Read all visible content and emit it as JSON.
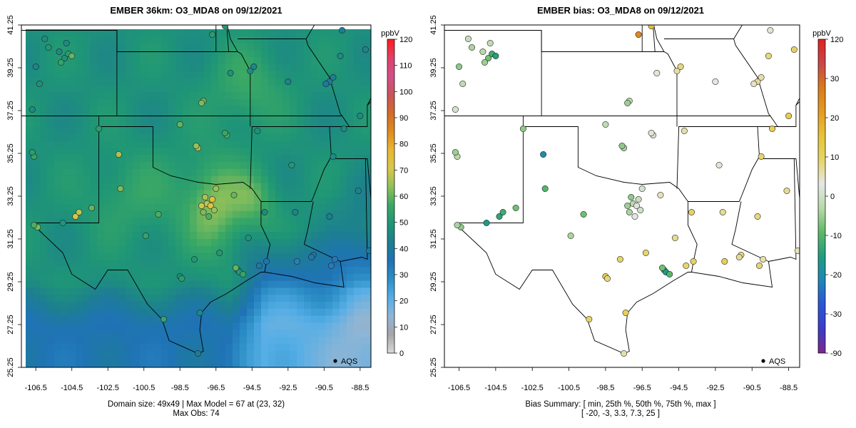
{
  "left_panel": {
    "title": "EMBER 36km: O3_MDA8 on 09/12/2021",
    "x_ticks": [
      "-106.5",
      "-104.5",
      "-102.5",
      "-100.5",
      "-98.5",
      "-96.5",
      "-94.5",
      "-92.5",
      "-90.5",
      "-88.5"
    ],
    "y_ticks": [
      "25.25",
      "27.25",
      "29.25",
      "31.25",
      "33.25",
      "35.25",
      "37.25",
      "39.25",
      "41.25"
    ],
    "legend_label": "AQS",
    "caption_line1": "Domain size: 49x49 | Max Model = 67 at (23, 32)",
    "caption_line2": "Max Obs: 74",
    "colorbar": {
      "unit": "ppbV",
      "ticks": [
        "0",
        "10",
        "20",
        "30",
        "40",
        "50",
        "60",
        "70",
        "80",
        "90",
        "100",
        "110",
        "120"
      ],
      "range": [
        0,
        120
      ],
      "stops": [
        "#d9d9d9",
        "#a6a6a6",
        "#8fb5d5",
        "#55aee6",
        "#2d8fc7",
        "#1f73b5",
        "#1d7f90",
        "#1f9676",
        "#3aa865",
        "#8fc05a",
        "#d7c84a",
        "#e9b632",
        "#e08a20",
        "#d46a2a",
        "#c8545c",
        "#d34f8a",
        "#e0406a",
        "#ff1a1a"
      ]
    },
    "stations": [
      {
        "lon": -104.9,
        "lat": 39.7,
        "v": 48
      },
      {
        "lon": -104.7,
        "lat": 39.9,
        "v": 52
      },
      {
        "lon": -105.1,
        "lat": 39.5,
        "v": 55
      },
      {
        "lon": -104.5,
        "lat": 39.8,
        "v": 60
      },
      {
        "lon": -105.2,
        "lat": 40.0,
        "v": 45
      },
      {
        "lon": -104.8,
        "lat": 40.4,
        "v": 46
      },
      {
        "lon": -106.0,
        "lat": 40.6,
        "v": 47
      },
      {
        "lon": -106.5,
        "lat": 39.3,
        "v": 44
      },
      {
        "lon": -105.8,
        "lat": 40.2,
        "v": 50
      },
      {
        "lon": -106.3,
        "lat": 38.5,
        "v": 48
      },
      {
        "lon": -106.7,
        "lat": 37.3,
        "v": 46
      },
      {
        "lon": -106.6,
        "lat": 35.1,
        "v": 55
      },
      {
        "lon": -106.7,
        "lat": 35.3,
        "v": 52
      },
      {
        "lon": -106.4,
        "lat": 31.8,
        "v": 62
      },
      {
        "lon": -106.6,
        "lat": 31.9,
        "v": 58
      },
      {
        "lon": -104.3,
        "lat": 32.3,
        "v": 72
      },
      {
        "lon": -104.1,
        "lat": 32.5,
        "v": 68
      },
      {
        "lon": -103.4,
        "lat": 32.7,
        "v": 60
      },
      {
        "lon": -105.0,
        "lat": 32.0,
        "v": 50
      },
      {
        "lon": -101.9,
        "lat": 35.2,
        "v": 66
      },
      {
        "lon": -99.4,
        "lat": 27.5,
        "v": 55
      },
      {
        "lon": -98.5,
        "lat": 29.5,
        "v": 48
      },
      {
        "lon": -98.4,
        "lat": 29.4,
        "v": 52
      },
      {
        "lon": -97.7,
        "lat": 30.3,
        "v": 50
      },
      {
        "lon": -97.4,
        "lat": 27.8,
        "v": 45
      },
      {
        "lon": -97.5,
        "lat": 25.9,
        "v": 42
      },
      {
        "lon": -97.3,
        "lat": 32.8,
        "v": 70
      },
      {
        "lon": -97.0,
        "lat": 32.9,
        "v": 68
      },
      {
        "lon": -96.8,
        "lat": 32.8,
        "v": 72
      },
      {
        "lon": -96.7,
        "lat": 33.1,
        "v": 74
      },
      {
        "lon": -97.1,
        "lat": 33.2,
        "v": 66
      },
      {
        "lon": -96.6,
        "lat": 32.6,
        "v": 64
      },
      {
        "lon": -97.2,
        "lat": 32.5,
        "v": 62
      },
      {
        "lon": -96.9,
        "lat": 32.3,
        "v": 58
      },
      {
        "lon": -95.3,
        "lat": 29.8,
        "v": 45
      },
      {
        "lon": -95.2,
        "lat": 29.7,
        "v": 50
      },
      {
        "lon": -95.4,
        "lat": 29.9,
        "v": 60
      },
      {
        "lon": -95.0,
        "lat": 29.6,
        "v": 55
      },
      {
        "lon": -94.1,
        "lat": 30.0,
        "v": 38
      },
      {
        "lon": -93.7,
        "lat": 30.2,
        "v": 36
      },
      {
        "lon": -91.1,
        "lat": 30.5,
        "v": 35
      },
      {
        "lon": -91.2,
        "lat": 30.4,
        "v": 38
      },
      {
        "lon": -90.1,
        "lat": 30.0,
        "v": 33
      },
      {
        "lon": -89.9,
        "lat": 30.3,
        "v": 34
      },
      {
        "lon": -88.0,
        "lat": 30.7,
        "v": 40
      },
      {
        "lon": -92.0,
        "lat": 30.2,
        "v": 32
      },
      {
        "lon": -93.8,
        "lat": 32.5,
        "v": 46
      },
      {
        "lon": -92.1,
        "lat": 32.5,
        "v": 44
      },
      {
        "lon": -97.5,
        "lat": 35.5,
        "v": 66
      },
      {
        "lon": -97.6,
        "lat": 35.6,
        "v": 64
      },
      {
        "lon": -95.9,
        "lat": 36.1,
        "v": 58
      },
      {
        "lon": -96.0,
        "lat": 36.2,
        "v": 56
      },
      {
        "lon": -97.2,
        "lat": 37.7,
        "v": 60
      },
      {
        "lon": -97.3,
        "lat": 37.6,
        "v": 62
      },
      {
        "lon": -94.6,
        "lat": 39.1,
        "v": 46
      },
      {
        "lon": -94.4,
        "lat": 39.3,
        "v": 44
      },
      {
        "lon": -95.7,
        "lat": 39.0,
        "v": 48
      },
      {
        "lon": -96.0,
        "lat": 41.2,
        "v": 50
      },
      {
        "lon": -96.7,
        "lat": 40.8,
        "v": 52
      },
      {
        "lon": -93.6,
        "lat": 41.6,
        "v": 48
      },
      {
        "lon": -90.2,
        "lat": 38.6,
        "v": 40
      },
      {
        "lon": -90.0,
        "lat": 38.8,
        "v": 42
      },
      {
        "lon": -90.4,
        "lat": 38.5,
        "v": 38
      },
      {
        "lon": -89.6,
        "lat": 39.8,
        "v": 45
      },
      {
        "lon": -88.2,
        "lat": 40.1,
        "v": 44
      },
      {
        "lon": -92.3,
        "lat": 34.7,
        "v": 50
      },
      {
        "lon": -94.2,
        "lat": 36.3,
        "v": 48
      },
      {
        "lon": -90.0,
        "lat": 35.1,
        "v": 46
      },
      {
        "lon": -89.4,
        "lat": 36.4,
        "v": 45
      },
      {
        "lon": -88.6,
        "lat": 33.5,
        "v": 44
      },
      {
        "lon": -90.2,
        "lat": 32.3,
        "v": 42
      },
      {
        "lon": -88.5,
        "lat": 37.0,
        "v": 46
      },
      {
        "lon": -92.5,
        "lat": 38.6,
        "v": 44
      },
      {
        "lon": -91.6,
        "lat": 41.7,
        "v": 40
      },
      {
        "lon": -89.5,
        "lat": 41.0,
        "v": 42
      },
      {
        "lon": -98.5,
        "lat": 36.6,
        "v": 60
      },
      {
        "lon": -99.7,
        "lat": 32.4,
        "v": 58
      },
      {
        "lon": -101.8,
        "lat": 33.6,
        "v": 62
      },
      {
        "lon": -100.4,
        "lat": 31.4,
        "v": 55
      },
      {
        "lon": -103.0,
        "lat": 36.4,
        "v": 52
      },
      {
        "lon": -96.5,
        "lat": 33.6,
        "v": 64
      },
      {
        "lon": -95.5,
        "lat": 33.3,
        "v": 60
      },
      {
        "lon": -94.7,
        "lat": 31.3,
        "v": 48
      },
      {
        "lon": -96.3,
        "lat": 30.6,
        "v": 50
      }
    ]
  },
  "right_panel": {
    "title": "EMBER bias: O3_MDA8 on 09/12/2021",
    "x_ticks": [
      "-106.5",
      "-104.5",
      "-102.5",
      "-100.5",
      "-98.5",
      "-96.5",
      "-94.5",
      "-92.5",
      "-90.5",
      "-88.5"
    ],
    "y_ticks": [
      "25.25",
      "27.25",
      "29.25",
      "31.25",
      "33.25",
      "35.25",
      "37.25",
      "39.25",
      "41.25"
    ],
    "legend_label": "AQS",
    "caption_line1": "Bias Summary: [ min, 25th %, 50th %, 75th %, max ]",
    "caption_line2": "[ -20,   -3,   3.3,   7.3,   25 ]",
    "colorbar": {
      "unit": "ppbV",
      "ticks": [
        "-90",
        "-30",
        "-20",
        "-10",
        "0",
        "10",
        "20",
        "30",
        "120"
      ],
      "range": [
        -90,
        120
      ],
      "stops": [
        "#7b2a8c",
        "#3c3cc8",
        "#2b55d8",
        "#1f86b8",
        "#1f9d80",
        "#5db867",
        "#b8d9a8",
        "#e6e6e6",
        "#e5d566",
        "#e8c23a",
        "#e59b22",
        "#d87a1a",
        "#c84848",
        "#e02020"
      ]
    },
    "stations": [
      {
        "lon": -104.9,
        "lat": 39.7,
        "v": -8
      },
      {
        "lon": -104.7,
        "lat": 39.9,
        "v": -12
      },
      {
        "lon": -105.1,
        "lat": 39.5,
        "v": -5
      },
      {
        "lon": -104.5,
        "lat": 39.8,
        "v": -15
      },
      {
        "lon": -105.2,
        "lat": 40.0,
        "v": -3
      },
      {
        "lon": -104.8,
        "lat": 40.4,
        "v": -2
      },
      {
        "lon": -106.0,
        "lat": 40.6,
        "v": -1
      },
      {
        "lon": -106.5,
        "lat": 39.3,
        "v": -6
      },
      {
        "lon": -105.8,
        "lat": 40.2,
        "v": -4
      },
      {
        "lon": -106.3,
        "lat": 38.5,
        "v": -2
      },
      {
        "lon": -106.7,
        "lat": 37.3,
        "v": 1
      },
      {
        "lon": -106.6,
        "lat": 35.1,
        "v": -3
      },
      {
        "lon": -106.7,
        "lat": 35.3,
        "v": -5
      },
      {
        "lon": -106.4,
        "lat": 31.8,
        "v": -6
      },
      {
        "lon": -106.6,
        "lat": 31.9,
        "v": -4
      },
      {
        "lon": -104.3,
        "lat": 32.3,
        "v": -14
      },
      {
        "lon": -104.1,
        "lat": 32.5,
        "v": -12
      },
      {
        "lon": -103.4,
        "lat": 32.7,
        "v": -8
      },
      {
        "lon": -105.0,
        "lat": 32.0,
        "v": -16
      },
      {
        "lon": -101.9,
        "lat": 35.2,
        "v": -20
      },
      {
        "lon": -99.4,
        "lat": 27.5,
        "v": 10
      },
      {
        "lon": -98.5,
        "lat": 29.5,
        "v": 12
      },
      {
        "lon": -98.4,
        "lat": 29.4,
        "v": 8
      },
      {
        "lon": -97.7,
        "lat": 30.3,
        "v": 9
      },
      {
        "lon": -97.4,
        "lat": 27.8,
        "v": 11
      },
      {
        "lon": -97.5,
        "lat": 25.9,
        "v": 6
      },
      {
        "lon": -97.3,
        "lat": 32.8,
        "v": -5
      },
      {
        "lon": -97.0,
        "lat": 32.9,
        "v": -3
      },
      {
        "lon": -96.8,
        "lat": 32.8,
        "v": 2
      },
      {
        "lon": -96.7,
        "lat": 33.1,
        "v": -1
      },
      {
        "lon": -97.1,
        "lat": 33.2,
        "v": -6
      },
      {
        "lon": -96.6,
        "lat": 32.6,
        "v": 0
      },
      {
        "lon": -97.2,
        "lat": 32.5,
        "v": -4
      },
      {
        "lon": -96.9,
        "lat": 32.3,
        "v": 3
      },
      {
        "lon": -95.3,
        "lat": 29.8,
        "v": -12
      },
      {
        "lon": -95.2,
        "lat": 29.7,
        "v": -16
      },
      {
        "lon": -95.4,
        "lat": 29.9,
        "v": -8
      },
      {
        "lon": -95.0,
        "lat": 29.6,
        "v": -10
      },
      {
        "lon": -94.1,
        "lat": 30.0,
        "v": 9
      },
      {
        "lon": -93.7,
        "lat": 30.2,
        "v": 10
      },
      {
        "lon": -91.1,
        "lat": 30.5,
        "v": 8
      },
      {
        "lon": -91.2,
        "lat": 30.4,
        "v": 7
      },
      {
        "lon": -90.1,
        "lat": 30.0,
        "v": 9
      },
      {
        "lon": -89.9,
        "lat": 30.3,
        "v": 6
      },
      {
        "lon": -88.0,
        "lat": 30.7,
        "v": 5
      },
      {
        "lon": -92.0,
        "lat": 30.2,
        "v": 11
      },
      {
        "lon": -93.8,
        "lat": 32.5,
        "v": 10
      },
      {
        "lon": -92.1,
        "lat": 32.5,
        "v": 7
      },
      {
        "lon": -97.5,
        "lat": 35.5,
        "v": -4
      },
      {
        "lon": -97.6,
        "lat": 35.6,
        "v": -6
      },
      {
        "lon": -95.9,
        "lat": 36.1,
        "v": 2
      },
      {
        "lon": -96.0,
        "lat": 36.2,
        "v": 4
      },
      {
        "lon": -97.2,
        "lat": 37.7,
        "v": -3
      },
      {
        "lon": -97.3,
        "lat": 37.6,
        "v": -5
      },
      {
        "lon": -94.6,
        "lat": 39.1,
        "v": 6
      },
      {
        "lon": -94.4,
        "lat": 39.3,
        "v": 8
      },
      {
        "lon": -95.7,
        "lat": 39.0,
        "v": 4
      },
      {
        "lon": -96.0,
        "lat": 41.2,
        "v": 16
      },
      {
        "lon": -96.7,
        "lat": 40.8,
        "v": 25
      },
      {
        "lon": -93.6,
        "lat": 41.6,
        "v": 12
      },
      {
        "lon": -90.2,
        "lat": 38.6,
        "v": 7
      },
      {
        "lon": -90.0,
        "lat": 38.8,
        "v": 6
      },
      {
        "lon": -90.4,
        "lat": 38.5,
        "v": 5
      },
      {
        "lon": -89.6,
        "lat": 39.8,
        "v": 8
      },
      {
        "lon": -88.2,
        "lat": 40.1,
        "v": 10
      },
      {
        "lon": -92.3,
        "lat": 34.7,
        "v": 4
      },
      {
        "lon": -94.2,
        "lat": 36.3,
        "v": 6
      },
      {
        "lon": -90.0,
        "lat": 35.1,
        "v": 9
      },
      {
        "lon": -89.4,
        "lat": 36.4,
        "v": 11
      },
      {
        "lon": -88.6,
        "lat": 33.5,
        "v": 7
      },
      {
        "lon": -90.2,
        "lat": 32.3,
        "v": 8
      },
      {
        "lon": -88.5,
        "lat": 37.0,
        "v": 12
      },
      {
        "lon": -92.5,
        "lat": 38.6,
        "v": 3
      },
      {
        "lon": -91.6,
        "lat": 41.7,
        "v": 2
      },
      {
        "lon": -89.5,
        "lat": 41.0,
        "v": 4
      },
      {
        "lon": -98.5,
        "lat": 36.6,
        "v": -2
      },
      {
        "lon": -99.7,
        "lat": 32.4,
        "v": -8
      },
      {
        "lon": -101.8,
        "lat": 33.6,
        "v": -10
      },
      {
        "lon": -100.4,
        "lat": 31.4,
        "v": -4
      },
      {
        "lon": -103.0,
        "lat": 36.4,
        "v": -6
      },
      {
        "lon": -96.5,
        "lat": 33.6,
        "v": 1
      },
      {
        "lon": -95.5,
        "lat": 33.3,
        "v": 5
      },
      {
        "lon": -94.7,
        "lat": 31.3,
        "v": 7
      },
      {
        "lon": -96.3,
        "lat": 30.6,
        "v": 9
      }
    ]
  },
  "domain": {
    "lon_min": -107.3,
    "lon_max": -87.9,
    "lat_min": 25.25,
    "lat_max": 41.25
  }
}
